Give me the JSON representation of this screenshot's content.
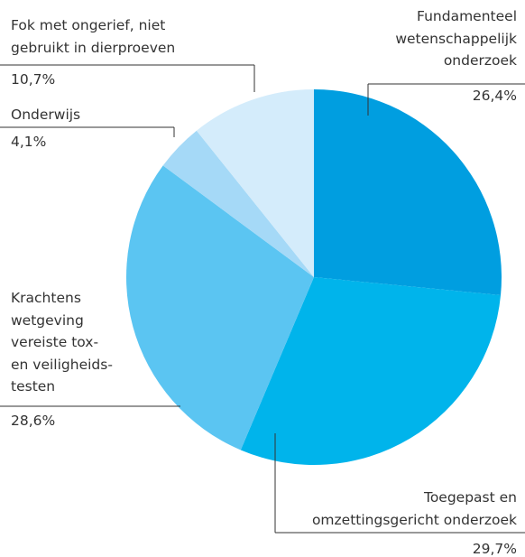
{
  "chart_data": {
    "type": "pie",
    "categories": [
      "Fundamenteel\nwetenschappelijk\nonderzoek",
      "Toegepast en\nomzettingsgericht onderzoek",
      "Krachtens\nwetgeving\nvereiste tox-\nen veiligheids-\ntesten",
      "Onderwijs",
      "Fok met ongerief, niet\ngebruikt in dierproeven"
    ],
    "values": [
      26.4,
      29.7,
      28.6,
      4.1,
      10.7
    ],
    "value_labels": [
      "26,4%",
      "29,7%",
      "28,6%",
      "4,1%",
      "10,7%"
    ],
    "colors": [
      "#009ee0",
      "#00b4eb",
      "#5bc5f2",
      "#a5d9f7",
      "#d4ecfb"
    ]
  }
}
